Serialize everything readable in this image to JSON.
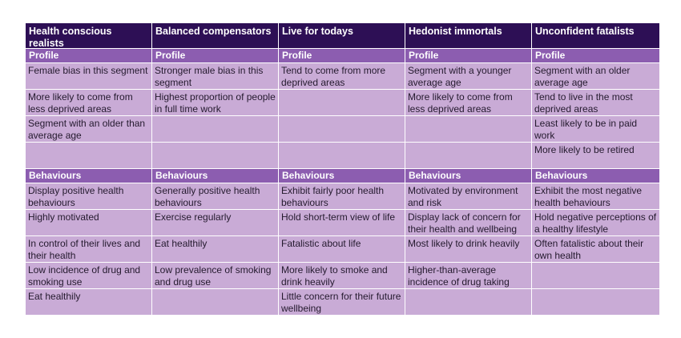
{
  "columns": [
    {
      "title": "Health conscious realists",
      "profile": [
        "Female bias in this segment",
        "More likely to come from less deprived areas",
        "Segment with an older than average age",
        ""
      ],
      "behaviours": [
        "Display positive health behaviours",
        "Highly motivated",
        "In control of their lives and their health",
        "Low incidence of drug and smoking use",
        "Eat healthily"
      ]
    },
    {
      "title": "Balanced compensators",
      "profile": [
        "Stronger male bias in this segment",
        "Highest proportion of people in full time work",
        "",
        ""
      ],
      "behaviours": [
        "Generally positive health behaviours",
        "Exercise regularly",
        "Eat healthily",
        "Low prevalence of smoking and drug use",
        ""
      ]
    },
    {
      "title": "Live for todays",
      "profile": [
        "Tend to come from more deprived areas",
        "",
        "",
        ""
      ],
      "behaviours": [
        "Exhibit fairly poor health behaviours",
        "Hold short-term view of life",
        "Fatalistic about life",
        "More likely to smoke and drink heavily",
        "Little concern for their future wellbeing"
      ]
    },
    {
      "title": "Hedonist immortals",
      "profile": [
        "Segment with a younger average age",
        "More likely to come from less deprived areas",
        "",
        ""
      ],
      "behaviours": [
        "Motivated by environment and risk",
        "Display lack of concern for their health and wellbeing",
        "Most likely to drink heavily",
        "Higher-than-average incidence of drug taking",
        ""
      ]
    },
    {
      "title": "Unconfident fatalists",
      "profile": [
        "Segment with an older average age",
        "Tend to live in the most deprived areas",
        "Least likely to be in paid work",
        "More likely to be retired"
      ],
      "behaviours": [
        "Exhibit the most negative health behaviours",
        "Hold negative perceptions of a healthy lifestyle",
        "Often fatalistic about their own health",
        "",
        ""
      ]
    }
  ],
  "sections": {
    "profile": "Profile",
    "behaviours": "Behaviours"
  },
  "colors": {
    "header": "#2d0f55",
    "section": "#8c5db0",
    "cell": "#c9abd6"
  }
}
